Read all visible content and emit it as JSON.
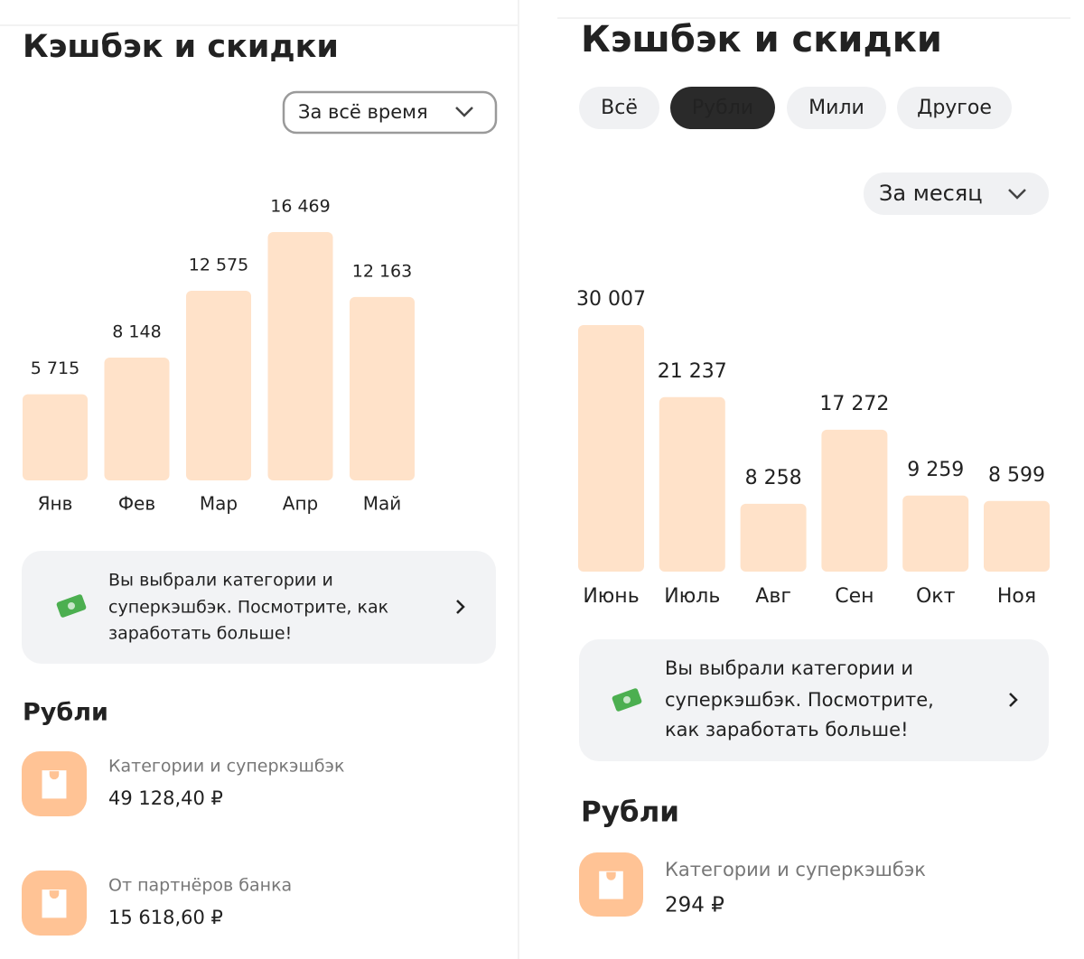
{
  "panels": [
    {
      "title": "Кэшбэк и скидки",
      "filter": "За всё время",
      "chart": {
        "type": "bar",
        "categories": [
          "Янв",
          "Фев",
          "Мар",
          "Апр",
          "Май"
        ],
        "values": [
          5715,
          8148,
          12575,
          16469,
          12163
        ],
        "value_labels": [
          "5 715",
          "8 148",
          "12 575",
          "16 469",
          "12 163"
        ],
        "color": "#ffe2c9"
      },
      "promo": [
        "Вы выбрали категории и",
        "суперкэшбэк. Посмотрите, как",
        "заработать больше!"
      ],
      "section": "Рубли",
      "items": [
        {
          "label": "Категории и суперкэшбэк",
          "amount": "49 128,40 ₽"
        },
        {
          "label": "От партнёров банка",
          "amount": "15 618,60 ₽"
        }
      ]
    },
    {
      "title": "Кэшбэк и скидки",
      "tabs": [
        "Всё",
        "Рубли",
        "Мили",
        "Другое"
      ],
      "active_tab": 1,
      "filter": "За месяц",
      "chart": {
        "type": "bar",
        "categories": [
          "Июнь",
          "Июль",
          "Авг",
          "Сен",
          "Окт",
          "Ноя"
        ],
        "values": [
          30007,
          21237,
          8258,
          17272,
          9259,
          8599
        ],
        "value_labels": [
          "30 007",
          "21 237",
          "8 258",
          "17 272",
          "9 259",
          "8 599"
        ],
        "color": "#ffe2c9",
        "selected": 4
      },
      "promo": [
        "Вы выбрали категории и",
        "суперкэшбэк. Посмотрите,",
        "как заработать больше!"
      ],
      "section": "Рубли",
      "items": [
        {
          "label": "Категории и суперкэшбэк",
          "amount": "294 ₽"
        }
      ]
    }
  ]
}
